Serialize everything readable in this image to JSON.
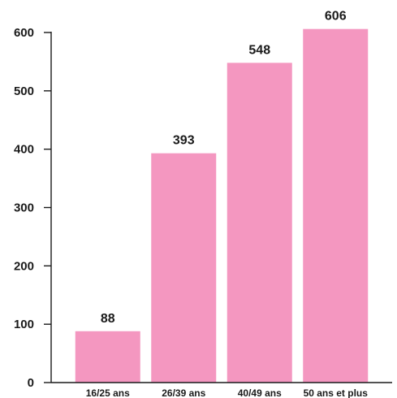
{
  "chart_data": {
    "type": "bar",
    "categories": [
      "16/25 ans",
      "26/39 ans",
      "40/49 ans",
      "50 ans et plus"
    ],
    "values": [
      88,
      393,
      548,
      606
    ],
    "data_labels": [
      "88",
      "393",
      "548",
      "606"
    ],
    "title": "",
    "xlabel": "",
    "ylabel": "",
    "ylim": [
      0,
      600
    ],
    "yticks": [
      0,
      100,
      200,
      300,
      400,
      500,
      600
    ],
    "bar_color": "#f497c0",
    "grid": false,
    "legend": "none"
  }
}
